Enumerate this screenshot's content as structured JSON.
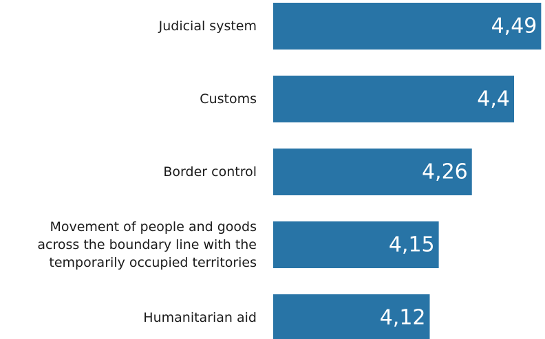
{
  "chart_data": {
    "type": "bar",
    "orientation": "horizontal",
    "categories": [
      "Judicial system",
      "Customs",
      "Border control",
      "Movement of people and goods across the boundary line with the temporarily occupied territories",
      "Humanitarian aid"
    ],
    "category_lines": [
      [
        "Judicial system"
      ],
      [
        "Customs"
      ],
      [
        "Border control"
      ],
      [
        "Movement of people and goods",
        "across the boundary line with the",
        "temporarily occupied territories"
      ],
      [
        "Humanitarian aid"
      ]
    ],
    "values": [
      4.49,
      4.4,
      4.26,
      4.15,
      4.12
    ],
    "value_labels": [
      "4,49",
      "4,4",
      "4,26",
      "4,15",
      "4,12"
    ],
    "bar_color": "#2874a6",
    "title": "",
    "xlabel": "",
    "ylabel": "",
    "grid": false,
    "legend": "none"
  }
}
